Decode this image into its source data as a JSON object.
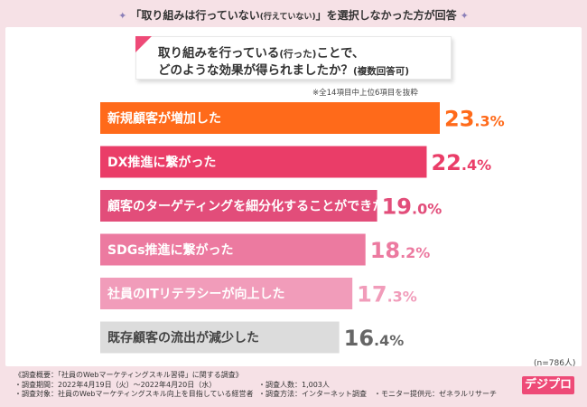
{
  "header": {
    "banner_part1": "「取り組みは行っていない",
    "banner_small": "(行えていない)",
    "banner_part2": "」を選択しなかった方が回答",
    "spark_left": "✦",
    "spark_right": "✦"
  },
  "question": {
    "line1_a": "取り組みを行っている",
    "line1_small": "(行った)",
    "line1_b": "ことで、",
    "line2_a": "どのような効果が得られましたか？",
    "line2_small": "(複数回答可)"
  },
  "note": "※全14項目中上位6項目を抜粋",
  "sample_size": "(n=786人)",
  "chart_data": {
    "type": "bar",
    "orientation": "horizontal",
    "categories": [
      "新規顧客が増加した",
      "DX推進に繋がった",
      "顧客のターゲティングを細分化することができた",
      "SDGs推進に繋がった",
      "社員のITリテラシーが向上した",
      "既存顧客の流出が減少した"
    ],
    "values": [
      23.3,
      22.4,
      19.0,
      18.2,
      17.3,
      16.4
    ],
    "value_labels": [
      {
        "int": "23",
        "dec": ".3",
        "unit": "%"
      },
      {
        "int": "22",
        "dec": ".4",
        "unit": "%"
      },
      {
        "int": "19",
        "dec": ".0",
        "unit": "%"
      },
      {
        "int": "18",
        "dec": ".2",
        "unit": "%"
      },
      {
        "int": "17",
        "dec": ".3",
        "unit": "%"
      },
      {
        "int": "16",
        "dec": ".4",
        "unit": "%"
      }
    ],
    "colors": [
      "#ff6a1a",
      "#ea3d68",
      "#e24d7a",
      "#ec7aa0",
      "#f19cba",
      "#dcdcdc"
    ],
    "label_colors": [
      "#ffffff",
      "#ffffff",
      "#ffffff",
      "#ffffff",
      "#ffffff",
      "#444444"
    ],
    "value_colors": [
      "#ff6a1a",
      "#ea3d68",
      "#e24d7a",
      "#ec7aa0",
      "#f19cba",
      "#666666"
    ],
    "xlim": [
      0,
      23.3
    ]
  },
  "footer": {
    "line1": "《調査概要：「社員のWebマーケティングスキル習得」に関する調査》",
    "line2": "・調査期間：2022年4月19日（火）〜2022年4月20日（水）",
    "line3": "・調査対象：社員のWebマーケティングスキル向上を目指している経営者",
    "col2_line2": "・調査人数：1,003人",
    "col2_line3": "・調査方法：インターネット調査",
    "col3_line3": "・モニター提供元：ゼネラルリサーチ"
  },
  "logo": "デジプロ"
}
